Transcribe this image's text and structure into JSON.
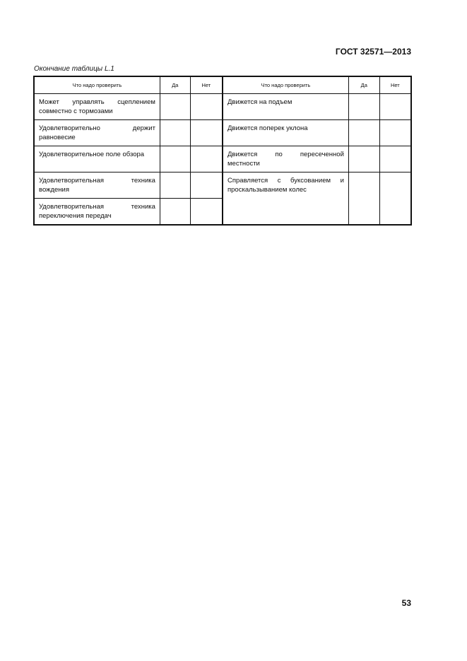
{
  "header": {
    "doc_id": "ГОСТ 32571—2013"
  },
  "caption": "Окончание таблицы L.1",
  "table": {
    "headers": [
      "Что надо проверить",
      "Да",
      "Нет",
      "Что надо проверить",
      "Да",
      "Нет"
    ],
    "left": [
      "Может управлять сцеплением совместно с тормозами",
      "Удовлетворительно держит равновесие",
      "Удовлетворительное поле обзора",
      "Удовлетворительная техника вождения",
      "Удовлетворительная техника переключения передач"
    ],
    "right": [
      "Движется на подъем",
      "Движется поперек уклона",
      "Движется по пересеченной местности",
      "Справляется с буксованием и проскальзыванием колес"
    ]
  },
  "footer": {
    "page_number": "53"
  }
}
